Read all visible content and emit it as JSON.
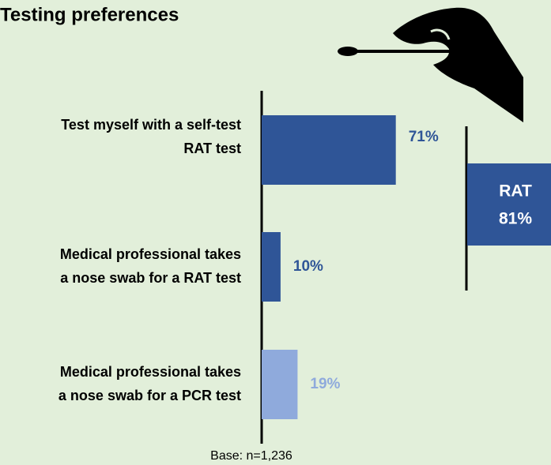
{
  "chart_data": {
    "type": "bar",
    "orientation": "horizontal",
    "title": "Testing preferences",
    "categories": [
      [
        "Test myself with a self-test",
        "RAT test"
      ],
      [
        "Medical professional takes",
        "a nose swab for a RAT test"
      ],
      [
        "Medical professional takes",
        "a nose swab for a PCR test"
      ]
    ],
    "values": [
      71,
      10,
      19
    ],
    "value_labels": [
      "71%",
      "10%",
      "19%"
    ],
    "colors": [
      "#2f5597",
      "#2f5597",
      "#8faadc"
    ],
    "xlim": [
      0,
      100
    ],
    "summary": {
      "label": "RAT",
      "value": 81,
      "value_label": "81%",
      "color": "#2f5597"
    },
    "note": "Base: n=1,236"
  }
}
